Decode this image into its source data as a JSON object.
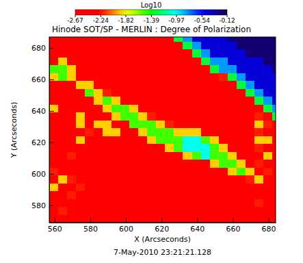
{
  "chart_data": {
    "type": "heatmap",
    "title": "Hinode SOT/SP - MERLIN : Degree of Polarization",
    "x_label": "X (Arcseconds)",
    "y_label": "Y (Arcseconds)",
    "annotation": "7-May-2010 23:21:21.128",
    "xlim": [
      557,
      684
    ],
    "ylim": [
      569,
      687
    ],
    "xticks": [
      560,
      580,
      600,
      620,
      640,
      660,
      680
    ],
    "yticks": [
      580,
      600,
      620,
      640,
      660,
      680
    ],
    "colorbar": {
      "title": "Log10",
      "range": [
        -2.67,
        -0.12
      ],
      "ticks": [
        -2.67,
        -2.24,
        -1.82,
        -1.39,
        -0.97,
        -0.54,
        -0.12
      ]
    },
    "x": [
      559.5,
      564.5,
      569.5,
      574.5,
      579.5,
      584.5,
      589.5,
      594.5,
      599.5,
      604.5,
      609.5,
      614.5,
      619.5,
      624.5,
      629.5,
      634.5,
      639.5,
      644.5,
      649.5,
      654.5,
      659.5,
      664.5,
      669.5,
      674.5,
      679.5,
      684.5
    ],
    "y": [
      686.5,
      681.5,
      676.5,
      671.5,
      666.5,
      661.5,
      656.5,
      651.5,
      646.5,
      641.5,
      636.5,
      631.5,
      626.5,
      621.5,
      616.5,
      611.5,
      606.5,
      601.5,
      596.5,
      591.5,
      586.5,
      581.5,
      576.5,
      571.5
    ],
    "z": [
      [
        -2.5,
        -2.5,
        -2.5,
        -2.5,
        -2.5,
        -2.5,
        -2.5,
        -2.5,
        -2.5,
        -2.5,
        -2.5,
        -2.5,
        -2.5,
        -2.5,
        -1.3,
        -0.8,
        -0.45,
        -0.45,
        -0.45,
        -0.45,
        -0.2,
        -0.2,
        -0.2,
        -0.2,
        -0.2,
        -0.2
      ],
      [
        -2.5,
        -2.5,
        -2.5,
        -2.5,
        -2.5,
        -2.5,
        -2.5,
        -2.5,
        -2.5,
        -2.5,
        -2.5,
        -2.5,
        -2.5,
        -2.5,
        -2.5,
        -1.3,
        -0.8,
        -0.45,
        -0.45,
        -0.45,
        -0.45,
        -0.2,
        -0.2,
        -0.2,
        -0.2,
        -0.2
      ],
      [
        -2.5,
        -2.5,
        -2.5,
        -2.5,
        -2.5,
        -2.5,
        -2.5,
        -2.5,
        -2.5,
        -2.5,
        -2.5,
        -2.5,
        -2.5,
        -2.5,
        -2.5,
        -2.5,
        -1.3,
        -0.8,
        -0.45,
        -0.45,
        -0.45,
        -0.45,
        -0.2,
        -0.2,
        -0.2,
        -0.2
      ],
      [
        -2.5,
        -1.9,
        -2.5,
        -2.5,
        -2.5,
        -2.5,
        -2.5,
        -2.5,
        -2.5,
        -2.5,
        -2.5,
        -2.5,
        -2.5,
        -2.5,
        -2.5,
        -2.5,
        -2.5,
        -1.3,
        -0.8,
        -0.8,
        -0.45,
        -0.45,
        -0.45,
        -0.45,
        -0.2,
        -0.2
      ],
      [
        -1.5,
        -1.5,
        -1.9,
        -2.5,
        -2.5,
        -2.5,
        -2.5,
        -2.5,
        -2.5,
        -2.5,
        -2.5,
        -2.5,
        -2.5,
        -2.5,
        -2.5,
        -2.5,
        -2.5,
        -2.5,
        -1.3,
        -0.8,
        -0.8,
        -0.45,
        -0.45,
        -0.45,
        -0.45,
        -0.2
      ],
      [
        -1.9,
        -1.5,
        -1.9,
        -2.5,
        -2.5,
        -2.5,
        -2.5,
        -2.5,
        -2.5,
        -2.5,
        -2.5,
        -2.5,
        -2.5,
        -2.5,
        -2.5,
        -2.5,
        -2.5,
        -2.5,
        -2.5,
        -2.2,
        -1.3,
        -0.8,
        -0.45,
        -0.45,
        -0.45,
        -0.45
      ],
      [
        -2.5,
        -2.5,
        -2.5,
        -1.9,
        -1.9,
        -2.5,
        -2.5,
        -2.5,
        -2.5,
        -2.5,
        -2.5,
        -2.5,
        -2.5,
        -2.5,
        -2.5,
        -2.5,
        -2.5,
        -2.5,
        -2.5,
        -2.5,
        -2.5,
        -1.3,
        -0.8,
        -0.45,
        -0.45,
        -0.45
      ],
      [
        -2.5,
        -2.5,
        -2.5,
        -2.5,
        -1.5,
        -1.9,
        -2.2,
        -2.5,
        -2.5,
        -2.5,
        -2.5,
        -2.5,
        -2.5,
        -2.5,
        -2.5,
        -2.5,
        -2.5,
        -2.5,
        -2.5,
        -2.5,
        -2.5,
        -2.5,
        -1.3,
        -0.8,
        -0.45,
        -0.45
      ],
      [
        -2.5,
        -2.5,
        -2.5,
        -2.5,
        -2.5,
        -1.9,
        -1.5,
        -1.9,
        -2.5,
        -2.5,
        -2.5,
        -2.5,
        -2.5,
        -2.5,
        -2.5,
        -2.5,
        -2.5,
        -2.5,
        -2.5,
        -2.5,
        -2.5,
        -2.5,
        -2.5,
        -1.3,
        -0.8,
        -0.45
      ],
      [
        -1.9,
        -2.5,
        -2.5,
        -2.5,
        -2.5,
        -2.5,
        -1.9,
        -1.5,
        -1.5,
        -1.9,
        -2.5,
        -2.5,
        -2.5,
        -2.5,
        -2.5,
        -2.5,
        -2.5,
        -2.5,
        -2.5,
        -2.5,
        -2.5,
        -2.5,
        -2.5,
        -2.5,
        -1.3,
        -0.8
      ],
      [
        -2.5,
        -2.5,
        -2.5,
        -1.9,
        -2.5,
        -2.5,
        -2.5,
        -1.9,
        -1.5,
        -1.5,
        -1.9,
        -2.2,
        -2.5,
        -2.5,
        -2.5,
        -2.5,
        -2.5,
        -2.5,
        -2.5,
        -2.5,
        -2.5,
        -2.5,
        -2.5,
        -2.2,
        -2.5,
        -1.3
      ],
      [
        -2.5,
        -2.5,
        -2.5,
        -1.9,
        -2.5,
        -1.9,
        -1.9,
        -2.5,
        -2.5,
        -1.5,
        -1.5,
        -1.5,
        -1.9,
        -2.2,
        -2.5,
        -2.5,
        -2.5,
        -2.5,
        -2.5,
        -2.5,
        -2.5,
        -2.5,
        -2.5,
        -1.9,
        -2.2,
        -2.5
      ],
      [
        -2.5,
        -2.5,
        -2.5,
        -2.5,
        -2.2,
        -2.5,
        -1.9,
        -1.9,
        -2.5,
        -2.5,
        -1.9,
        -1.5,
        -1.5,
        -1.5,
        -1.9,
        -1.9,
        -1.9,
        -2.5,
        -2.5,
        -2.5,
        -2.5,
        -2.5,
        -2.5,
        -2.2,
        -2.5,
        -2.5
      ],
      [
        -2.5,
        -2.5,
        -2.5,
        -1.9,
        -2.5,
        -2.5,
        -2.5,
        -2.5,
        -2.5,
        -2.5,
        -2.5,
        -1.9,
        -1.5,
        -1.5,
        -1.5,
        -1.0,
        -1.0,
        -1.5,
        -1.9,
        -2.5,
        -2.5,
        -2.5,
        -2.5,
        -1.9,
        -1.9,
        -2.5
      ],
      [
        -2.5,
        -2.5,
        -2.5,
        -2.5,
        -2.5,
        -2.5,
        -2.5,
        -2.5,
        -2.5,
        -2.5,
        -2.5,
        -2.5,
        -2.5,
        -1.9,
        -1.5,
        -1.0,
        -1.0,
        -1.0,
        -1.5,
        -1.9,
        -2.5,
        -2.5,
        -2.5,
        -2.2,
        -2.5,
        -2.5
      ],
      [
        -2.5,
        -2.5,
        -2.2,
        -2.5,
        -2.5,
        -2.5,
        -2.5,
        -2.5,
        -2.5,
        -2.5,
        -2.5,
        -2.5,
        -2.5,
        -2.5,
        -2.5,
        -1.9,
        -1.5,
        -1.0,
        -1.5,
        -1.5,
        -1.9,
        -2.5,
        -2.5,
        -2.5,
        -1.9,
        -2.5
      ],
      [
        -2.5,
        -2.5,
        -2.5,
        -2.5,
        -2.5,
        -2.5,
        -2.5,
        -2.5,
        -2.5,
        -2.5,
        -2.5,
        -2.5,
        -2.5,
        -2.5,
        -2.5,
        -2.5,
        -2.5,
        -2.5,
        -1.9,
        -1.5,
        -1.5,
        -1.9,
        -2.5,
        -2.2,
        -2.5,
        -2.5
      ],
      [
        -2.2,
        -2.5,
        -2.5,
        -2.5,
        -2.5,
        -2.5,
        -2.5,
        -2.5,
        -2.5,
        -2.5,
        -2.5,
        -2.5,
        -2.5,
        -2.5,
        -2.5,
        -2.5,
        -2.5,
        -2.5,
        -2.5,
        -2.5,
        -1.9,
        -1.5,
        -1.9,
        -2.5,
        -2.2,
        -2.5
      ],
      [
        -2.5,
        -1.9,
        -2.2,
        -2.5,
        -2.5,
        -2.5,
        -2.5,
        -2.5,
        -2.5,
        -2.5,
        -2.5,
        -2.5,
        -2.5,
        -2.5,
        -2.5,
        -2.5,
        -2.5,
        -2.5,
        -2.5,
        -2.5,
        -2.5,
        -2.5,
        -2.2,
        -1.9,
        -2.5,
        -2.5
      ],
      [
        -1.9,
        -2.5,
        -2.5,
        -2.2,
        -2.5,
        -2.5,
        -2.5,
        -2.5,
        -2.5,
        -2.5,
        -2.5,
        -2.5,
        -2.5,
        -2.5,
        -2.5,
        -2.5,
        -2.5,
        -2.5,
        -2.5,
        -2.5,
        -2.5,
        -2.5,
        -2.5,
        -2.5,
        -2.5,
        -2.5
      ],
      [
        -2.5,
        -2.5,
        -2.2,
        -2.5,
        -2.5,
        -2.5,
        -2.5,
        -2.5,
        -2.5,
        -2.5,
        -2.5,
        -2.5,
        -2.5,
        -2.5,
        -2.5,
        -2.5,
        -2.5,
        -2.5,
        -2.5,
        -2.5,
        -2.5,
        -2.5,
        -2.5,
        -2.5,
        -2.5,
        -2.5
      ],
      [
        -2.5,
        -2.5,
        -2.5,
        -2.5,
        -2.5,
        -2.5,
        -2.5,
        -2.5,
        -2.5,
        -2.5,
        -2.5,
        -2.5,
        -2.5,
        -2.5,
        -2.5,
        -2.5,
        -2.5,
        -2.5,
        -2.5,
        -2.5,
        -2.5,
        -2.5,
        -2.5,
        -2.2,
        -2.5,
        -2.5
      ],
      [
        -2.5,
        -2.2,
        -2.5,
        -2.5,
        -2.5,
        -2.5,
        -2.5,
        -2.5,
        -2.5,
        -2.5,
        -2.5,
        -2.5,
        -2.5,
        -2.5,
        -2.5,
        -2.5,
        -2.5,
        -2.5,
        -2.5,
        -2.5,
        -2.5,
        -2.5,
        -2.5,
        -2.5,
        -2.5,
        -2.5
      ],
      [
        -2.5,
        -2.5,
        -2.5,
        -2.5,
        -2.5,
        -2.5,
        -2.5,
        -2.5,
        -2.5,
        -2.5,
        -2.5,
        -2.5,
        -2.5,
        -2.5,
        -2.5,
        -2.5,
        -2.5,
        -2.5,
        -2.5,
        -2.5,
        -2.5,
        -2.5,
        -2.5,
        -2.5,
        -2.5,
        -2.5
      ]
    ]
  }
}
